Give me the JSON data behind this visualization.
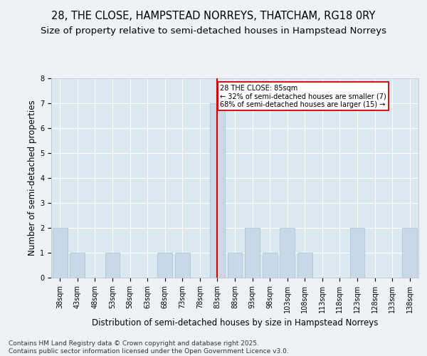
{
  "title": "28, THE CLOSE, HAMPSTEAD NORREYS, THATCHAM, RG18 0RY",
  "subtitle": "Size of property relative to semi-detached houses in Hampstead Norreys",
  "xlabel": "Distribution of semi-detached houses by size in Hampstead Norreys",
  "ylabel": "Number of semi-detached properties",
  "bar_labels": [
    "38sqm",
    "43sqm",
    "48sqm",
    "53sqm",
    "58sqm",
    "63sqm",
    "68sqm",
    "73sqm",
    "78sqm",
    "83sqm",
    "88sqm",
    "93sqm",
    "98sqm",
    "103sqm",
    "108sqm",
    "113sqm",
    "118sqm",
    "123sqm",
    "128sqm",
    "133sqm",
    "138sqm"
  ],
  "bar_values": [
    2,
    1,
    0,
    1,
    0,
    0,
    1,
    1,
    0,
    7,
    1,
    2,
    1,
    2,
    1,
    0,
    0,
    2,
    0,
    0,
    2
  ],
  "bar_color": "#c8d8e8",
  "bar_edge_color": "#a8c0d0",
  "red_line_index": 9,
  "annotation_text": "28 THE CLOSE: 85sqm\n← 32% of semi-detached houses are smaller (7)\n68% of semi-detached houses are larger (15) →",
  "annotation_box_color": "#ffffff",
  "annotation_box_edge": "#cc0000",
  "red_line_color": "#cc0000",
  "ylim": [
    0,
    8
  ],
  "yticks": [
    0,
    1,
    2,
    3,
    4,
    5,
    6,
    7,
    8
  ],
  "background_color": "#dce8f0",
  "grid_color": "#ffffff",
  "footer": "Contains HM Land Registry data © Crown copyright and database right 2025.\nContains public sector information licensed under the Open Government Licence v3.0.",
  "title_fontsize": 10.5,
  "subtitle_fontsize": 9.5,
  "xlabel_fontsize": 8.5,
  "ylabel_fontsize": 8.5,
  "tick_fontsize": 7,
  "footer_fontsize": 6.5,
  "fig_bg_color": "#eef2f6"
}
